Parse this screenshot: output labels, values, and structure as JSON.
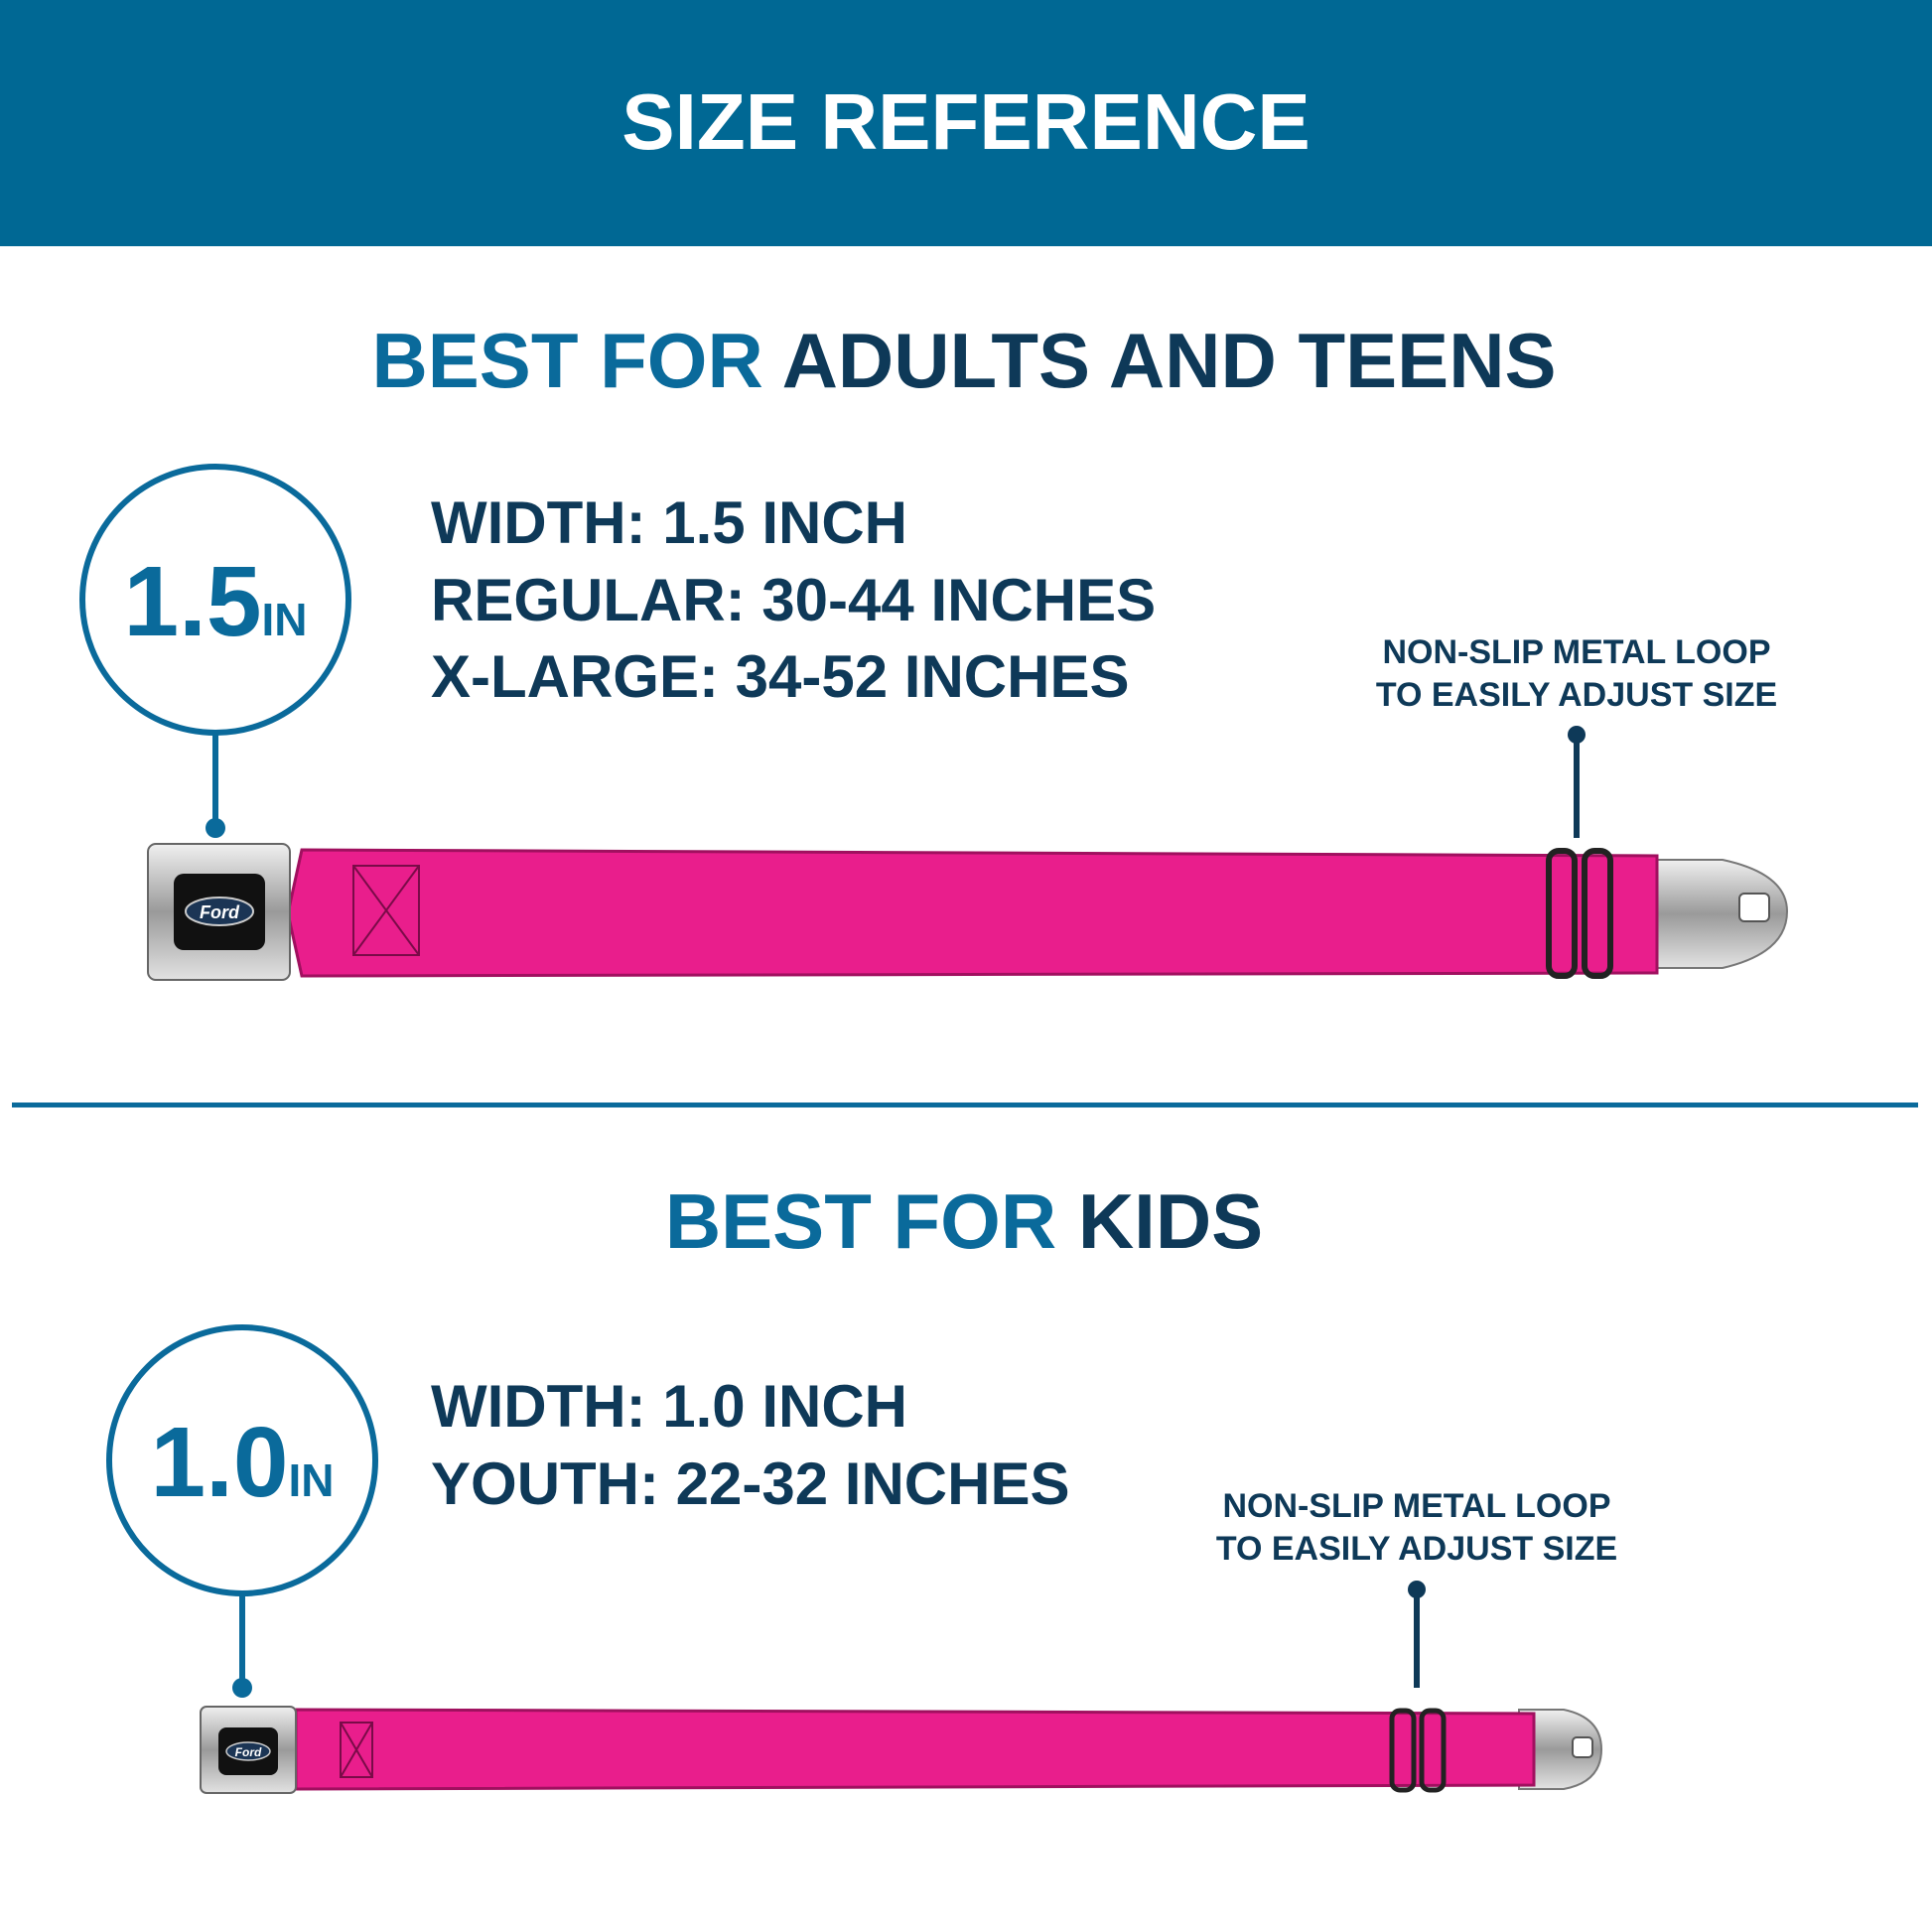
{
  "header": {
    "title": "SIZE REFERENCE"
  },
  "logo": "Ford",
  "sections": [
    {
      "heading_accent": "BEST FOR",
      "heading": "ADULTS AND TEENS",
      "badge_number": "1.5",
      "badge_unit": "IN",
      "specs": [
        "WIDTH: 1.5 INCH",
        "REGULAR: 30-44 INCHES",
        "X-LARGE: 34-52 INCHES"
      ],
      "callout": [
        "NON-SLIP METAL LOOP",
        "TO EASILY ADJUST SIZE"
      ]
    },
    {
      "heading_accent": "BEST FOR",
      "heading": "KIDS",
      "badge_number": "1.0",
      "badge_unit": "IN",
      "specs": [
        "WIDTH: 1.0 INCH",
        "YOUTH: 22-32 INCHES"
      ],
      "callout": [
        "NON-SLIP METAL LOOP",
        "TO EASILY ADJUST SIZE"
      ]
    }
  ]
}
